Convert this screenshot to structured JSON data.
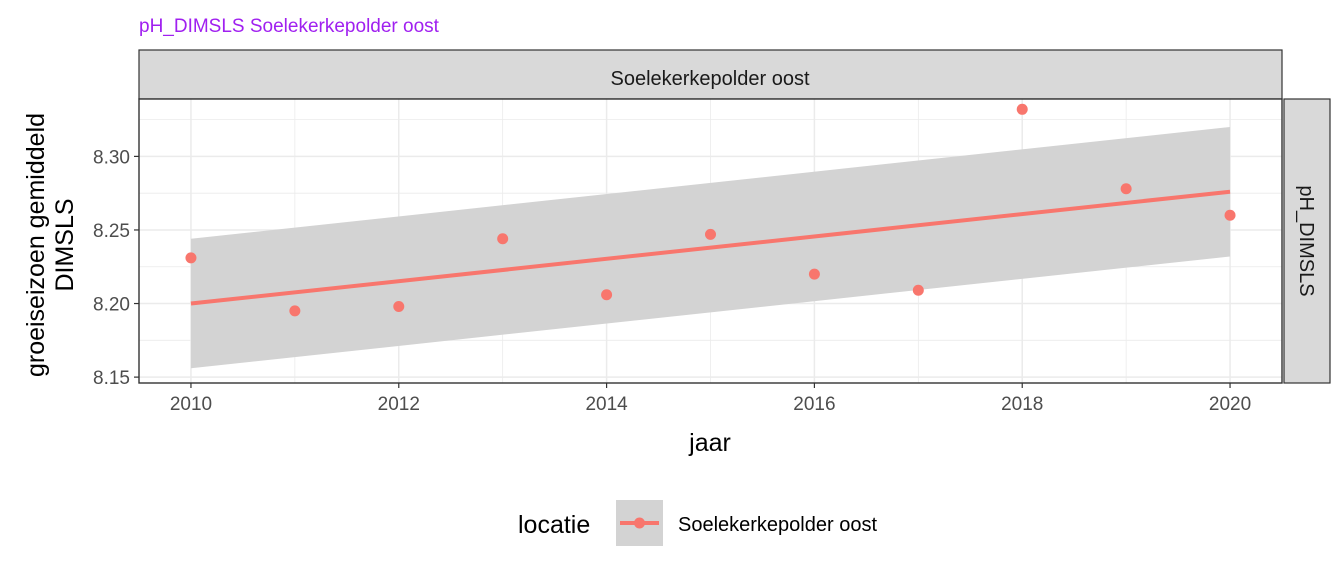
{
  "chart_data": {
    "type": "scatter",
    "title": "pH_DIMSLS Soelekerkepolder oost",
    "facet_top_label": "Soelekerkepolder oost",
    "facet_right_label": "pH_DIMSLS",
    "xlabel": "jaar",
    "ylabel_lines": [
      "groeiseizoen gemiddeld",
      "DIMSLS"
    ],
    "xlim": [
      2009.5,
      2020.5
    ],
    "ylim": [
      8.146,
      8.339
    ],
    "x_ticks": [
      2010,
      2012,
      2014,
      2016,
      2018,
      2020
    ],
    "x_tick_labels": [
      "2010",
      "2012",
      "2014",
      "2016",
      "2018",
      "2020"
    ],
    "y_ticks": [
      8.15,
      8.2,
      8.25,
      8.3
    ],
    "y_tick_labels": [
      "8.15",
      "8.20",
      "8.25",
      "8.30"
    ],
    "grid": true,
    "legend": {
      "title": "locatie",
      "position": "bottom",
      "entries": [
        "Soelekerkepolder oost"
      ]
    },
    "series": [
      {
        "name": "Soelekerkepolder oost",
        "color": "#f8766d",
        "x": [
          2010,
          2011,
          2012,
          2013,
          2014,
          2015,
          2016,
          2017,
          2018,
          2019,
          2020
        ],
        "y": [
          8.231,
          8.195,
          8.198,
          8.244,
          8.206,
          8.247,
          8.22,
          8.209,
          8.332,
          8.278,
          8.26
        ]
      }
    ],
    "trend": {
      "x": [
        2010,
        2020
      ],
      "y": [
        8.2,
        8.276
      ],
      "ci_lower": [
        8.156,
        8.232
      ],
      "ci_upper": [
        8.244,
        8.32
      ]
    },
    "colors": {
      "title": "#a020f0",
      "ribbon": "#d3d3d3",
      "strip": "#d9d9d9",
      "grid": "#ebebeb"
    }
  }
}
